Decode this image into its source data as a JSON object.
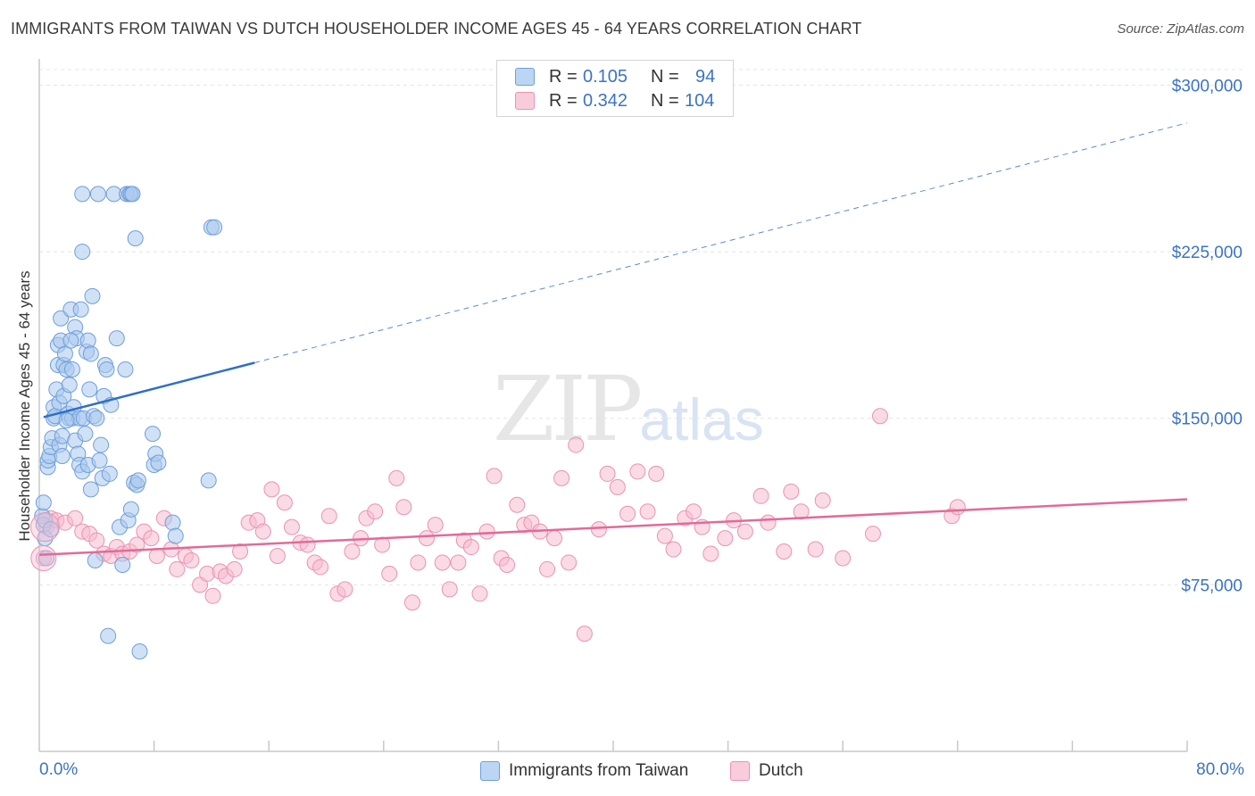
{
  "title": "IMMIGRANTS FROM TAIWAN VS DUTCH HOUSEHOLDER INCOME AGES 45 - 64 YEARS CORRELATION CHART",
  "source": "Source: ZipAtlas.com",
  "watermark": {
    "zip": "ZIP",
    "atlas": "atlas"
  },
  "legend_top": {
    "r_label": "R =",
    "n_label": "N =",
    "series": [
      {
        "r": "0.105",
        "n": "94"
      },
      {
        "r": "0.342",
        "n": "104"
      }
    ]
  },
  "colors": {
    "taiwan_fill": "#a9c8ef",
    "taiwan_stroke": "#6f9fd8",
    "taiwan_line": "#2f6fc8",
    "dutch_fill": "#f6bcd0",
    "dutch_stroke": "#ea93b1",
    "dutch_line": "#e36a98",
    "grid": "#e4e4e4",
    "tick_text": "#3b73c4"
  },
  "chart_data": {
    "type": "scatter",
    "title": "IMMIGRANTS FROM TAIWAN VS DUTCH HOUSEHOLDER INCOME AGES 45 - 64 YEARS CORRELATION CHART",
    "xlabel": "",
    "ylabel": "Householder Income Ages 45 - 64 years",
    "xlim": [
      0,
      80
    ],
    "ylim": [
      0,
      307000
    ],
    "x_tick_labels": [
      "0.0%",
      "80.0%"
    ],
    "y_ticks": [
      75000,
      150000,
      225000,
      300000
    ],
    "y_tick_labels": [
      "$75,000",
      "$150,000",
      "$225,000",
      "$300,000"
    ],
    "legend": [
      "Immigrants from Taiwan",
      "Dutch"
    ],
    "series": [
      {
        "name": "Immigrants from Taiwan",
        "r": 0.105,
        "n": 94,
        "trend": {
          "x0": 0.3,
          "y0": 150500,
          "x1": 15,
          "y1": 175000,
          "dash_to_x": 80,
          "dash_to_y": 283000
        },
        "points": [
          [
            0.2,
            106000
          ],
          [
            0.3,
            112000
          ],
          [
            0.3,
            102000
          ],
          [
            0.4,
            104000
          ],
          [
            0.4,
            96000
          ],
          [
            0.5,
            87000
          ],
          [
            0.6,
            128000
          ],
          [
            0.6,
            131000
          ],
          [
            0.7,
            133000
          ],
          [
            0.8,
            137000
          ],
          [
            0.9,
            141000
          ],
          [
            1.0,
            150000
          ],
          [
            1.0,
            155000
          ],
          [
            1.1,
            151000
          ],
          [
            1.2,
            163000
          ],
          [
            1.3,
            174000
          ],
          [
            1.3,
            183000
          ],
          [
            1.4,
            157000
          ],
          [
            1.4,
            138000
          ],
          [
            1.5,
            185000
          ],
          [
            1.5,
            195000
          ],
          [
            1.6,
            142000
          ],
          [
            1.6,
            133000
          ],
          [
            1.7,
            174000
          ],
          [
            1.7,
            160000
          ],
          [
            1.8,
            179000
          ],
          [
            1.9,
            172000
          ],
          [
            2.0,
            152000
          ],
          [
            2.1,
            165000
          ],
          [
            2.1,
            150000
          ],
          [
            2.2,
            199000
          ],
          [
            2.3,
            150000
          ],
          [
            2.3,
            172000
          ],
          [
            2.4,
            155000
          ],
          [
            2.5,
            140000
          ],
          [
            2.5,
            191000
          ],
          [
            2.6,
            186000
          ],
          [
            2.7,
            134000
          ],
          [
            2.8,
            150000
          ],
          [
            2.8,
            129000
          ],
          [
            2.9,
            199000
          ],
          [
            3.0,
            225000
          ],
          [
            3.0,
            126000
          ],
          [
            3.0,
            251000
          ],
          [
            3.1,
            150000
          ],
          [
            3.2,
            143000
          ],
          [
            3.3,
            180000
          ],
          [
            3.4,
            185000
          ],
          [
            3.4,
            129000
          ],
          [
            3.5,
            163000
          ],
          [
            3.6,
            118000
          ],
          [
            3.6,
            179000
          ],
          [
            3.7,
            205000
          ],
          [
            3.8,
            151000
          ],
          [
            4.0,
            150000
          ],
          [
            4.1,
            251000
          ],
          [
            4.2,
            131000
          ],
          [
            4.3,
            138000
          ],
          [
            4.4,
            123000
          ],
          [
            4.5,
            160000
          ],
          [
            4.6,
            174000
          ],
          [
            4.7,
            172000
          ],
          [
            4.8,
            52000
          ],
          [
            4.9,
            125000
          ],
          [
            5.0,
            156000
          ],
          [
            5.2,
            251000
          ],
          [
            5.4,
            186000
          ],
          [
            5.6,
            101000
          ],
          [
            5.8,
            84000
          ],
          [
            6.0,
            172000
          ],
          [
            6.1,
            251000
          ],
          [
            6.2,
            104000
          ],
          [
            6.3,
            251000
          ],
          [
            6.4,
            251000
          ],
          [
            6.4,
            109000
          ],
          [
            6.5,
            251000
          ],
          [
            6.6,
            121000
          ],
          [
            6.7,
            231000
          ],
          [
            6.8,
            120000
          ],
          [
            6.9,
            122000
          ],
          [
            7.0,
            45000
          ],
          [
            7.9,
            143000
          ],
          [
            8.0,
            129000
          ],
          [
            8.1,
            134000
          ],
          [
            8.3,
            130000
          ],
          [
            9.3,
            103000
          ],
          [
            9.5,
            97000
          ],
          [
            11.8,
            122000
          ],
          [
            12.0,
            236000
          ],
          [
            12.2,
            236000
          ],
          [
            3.9,
            86000
          ],
          [
            2.2,
            185000
          ],
          [
            1.9,
            149000
          ],
          [
            0.8,
            100000
          ]
        ]
      },
      {
        "name": "Dutch",
        "r": 0.342,
        "n": 104,
        "trend": {
          "x0": 0,
          "y0": 88500,
          "x1": 80,
          "y1": 113500
        },
        "points": [
          [
            0.3,
            87000
          ],
          [
            0.5,
            101000
          ],
          [
            0.8,
            105000
          ],
          [
            1.2,
            104000
          ],
          [
            1.8,
            103000
          ],
          [
            2.5,
            105000
          ],
          [
            3.0,
            99000
          ],
          [
            3.5,
            98000
          ],
          [
            4.0,
            95000
          ],
          [
            4.5,
            89000
          ],
          [
            5.0,
            88000
          ],
          [
            5.4,
            92000
          ],
          [
            5.8,
            89000
          ],
          [
            6.3,
            90000
          ],
          [
            6.8,
            93000
          ],
          [
            7.3,
            99000
          ],
          [
            7.8,
            96000
          ],
          [
            8.2,
            88000
          ],
          [
            8.7,
            105000
          ],
          [
            9.2,
            91000
          ],
          [
            9.6,
            82000
          ],
          [
            10.2,
            88000
          ],
          [
            10.6,
            86000
          ],
          [
            11.2,
            75000
          ],
          [
            11.7,
            80000
          ],
          [
            12.1,
            70000
          ],
          [
            12.6,
            81000
          ],
          [
            13.0,
            79000
          ],
          [
            13.6,
            82000
          ],
          [
            14.0,
            90000
          ],
          [
            14.6,
            103000
          ],
          [
            15.2,
            104000
          ],
          [
            15.6,
            99000
          ],
          [
            16.2,
            118000
          ],
          [
            16.6,
            88000
          ],
          [
            17.1,
            112000
          ],
          [
            17.6,
            101000
          ],
          [
            18.2,
            94000
          ],
          [
            18.7,
            93000
          ],
          [
            19.2,
            85000
          ],
          [
            19.6,
            83000
          ],
          [
            20.2,
            106000
          ],
          [
            20.8,
            71000
          ],
          [
            21.3,
            73000
          ],
          [
            21.8,
            90000
          ],
          [
            22.4,
            96000
          ],
          [
            22.8,
            105000
          ],
          [
            23.4,
            108000
          ],
          [
            23.9,
            93000
          ],
          [
            24.4,
            80000
          ],
          [
            24.9,
            123000
          ],
          [
            25.4,
            110000
          ],
          [
            26.0,
            67000
          ],
          [
            26.4,
            85000
          ],
          [
            27.0,
            96000
          ],
          [
            27.6,
            102000
          ],
          [
            28.1,
            85000
          ],
          [
            28.6,
            73000
          ],
          [
            29.2,
            85000
          ],
          [
            29.6,
            95000
          ],
          [
            30.1,
            92000
          ],
          [
            30.7,
            71000
          ],
          [
            31.2,
            99000
          ],
          [
            31.7,
            124000
          ],
          [
            32.2,
            87000
          ],
          [
            32.6,
            84000
          ],
          [
            33.3,
            111000
          ],
          [
            33.8,
            102000
          ],
          [
            34.3,
            103000
          ],
          [
            34.9,
            99000
          ],
          [
            35.4,
            82000
          ],
          [
            35.9,
            96000
          ],
          [
            36.4,
            123000
          ],
          [
            36.9,
            85000
          ],
          [
            37.4,
            138000
          ],
          [
            38.0,
            53000
          ],
          [
            39.0,
            100000
          ],
          [
            39.6,
            125000
          ],
          [
            40.3,
            119000
          ],
          [
            41.0,
            107000
          ],
          [
            41.7,
            126000
          ],
          [
            42.4,
            108000
          ],
          [
            43.0,
            125000
          ],
          [
            43.6,
            97000
          ],
          [
            44.2,
            91000
          ],
          [
            45.0,
            105000
          ],
          [
            45.6,
            108000
          ],
          [
            46.2,
            101000
          ],
          [
            46.8,
            89000
          ],
          [
            47.8,
            96000
          ],
          [
            48.4,
            104000
          ],
          [
            49.2,
            99000
          ],
          [
            50.3,
            115000
          ],
          [
            50.8,
            103000
          ],
          [
            51.9,
            90000
          ],
          [
            52.4,
            117000
          ],
          [
            53.1,
            108000
          ],
          [
            54.1,
            91000
          ],
          [
            54.6,
            113000
          ],
          [
            56.0,
            87000
          ],
          [
            58.1,
            98000
          ],
          [
            58.6,
            151000
          ],
          [
            63.6,
            106000
          ],
          [
            64.0,
            110000
          ]
        ]
      }
    ]
  }
}
